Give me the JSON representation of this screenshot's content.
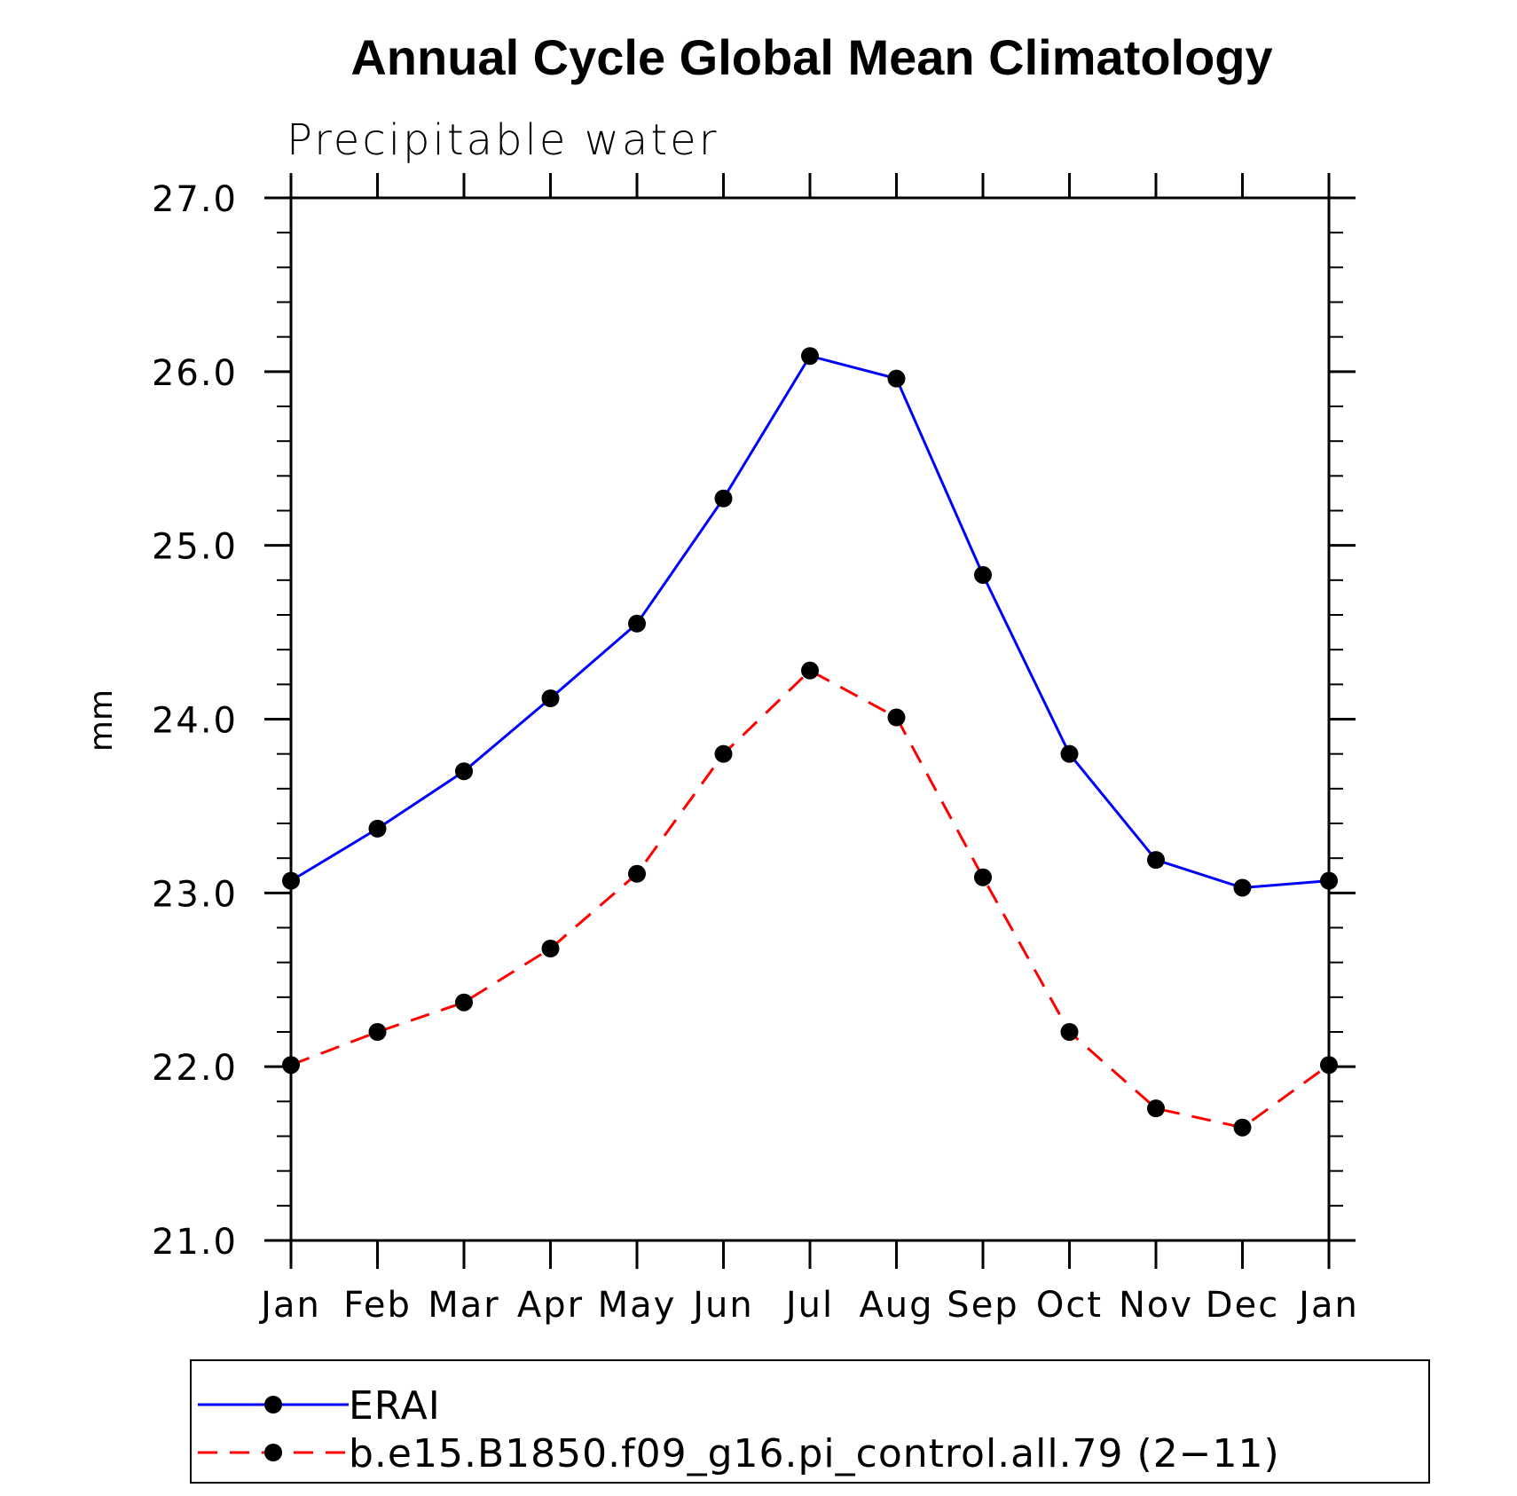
{
  "chart_data": {
    "type": "line",
    "title": "Annual Cycle Global Mean Climatology",
    "subtitle": "Precipitable water",
    "xlabel": "",
    "ylabel": "mm",
    "categories": [
      "Jan",
      "Feb",
      "Mar",
      "Apr",
      "May",
      "Jun",
      "Jul",
      "Aug",
      "Sep",
      "Oct",
      "Nov",
      "Dec",
      "Jan"
    ],
    "ylim": [
      21.0,
      27.0
    ],
    "yticks": [
      "21.0",
      "22.0",
      "23.0",
      "24.0",
      "25.0",
      "26.0",
      "27.0"
    ],
    "grid": false,
    "legend_position": "bottom",
    "series": [
      {
        "name": "ERAI",
        "color": "#0000ff",
        "style": "solid",
        "values": [
          23.07,
          23.37,
          23.7,
          24.12,
          24.55,
          25.27,
          26.09,
          25.96,
          24.83,
          23.8,
          23.19,
          23.03,
          23.07
        ]
      },
      {
        "name": "b.e15.B1850.f09_g16.pi_control.all.79 (2−11)",
        "color": "#ff0000",
        "style": "dashed",
        "values": [
          22.01,
          22.2,
          22.37,
          22.68,
          23.11,
          23.8,
          24.28,
          24.01,
          23.09,
          22.2,
          21.76,
          21.65,
          22.01
        ]
      }
    ]
  }
}
